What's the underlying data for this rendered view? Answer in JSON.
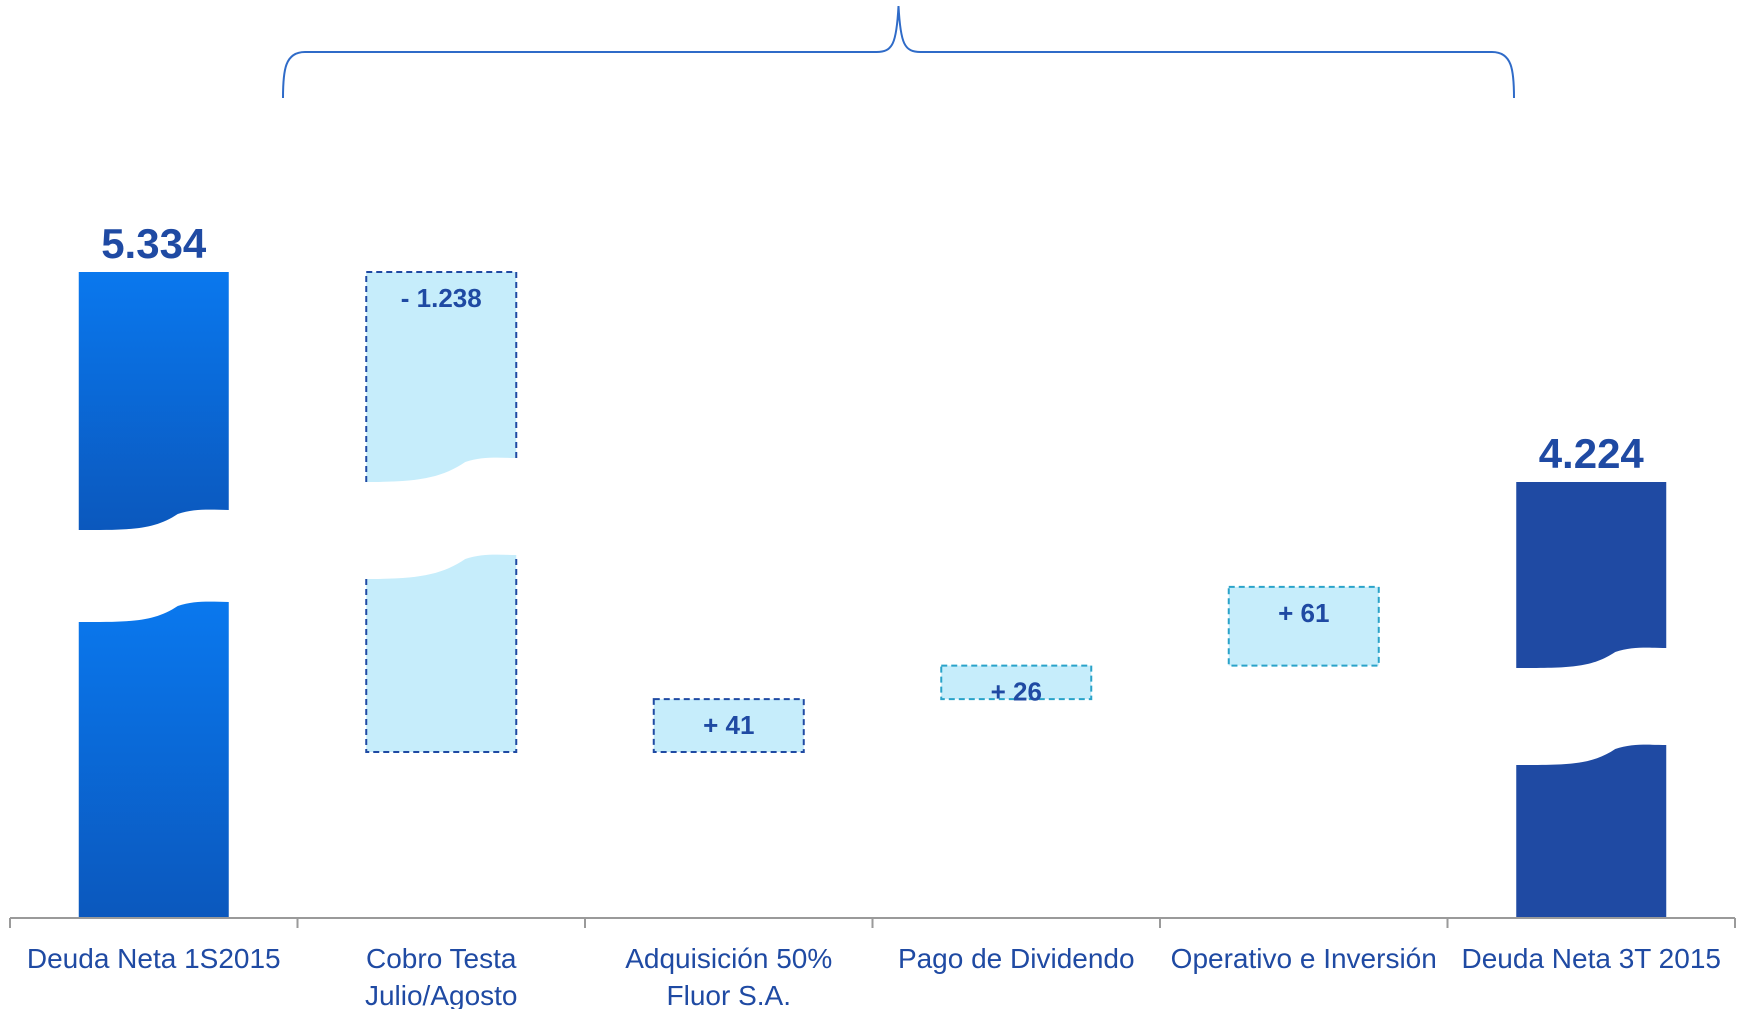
{
  "chart_data": {
    "type": "bar",
    "subtype": "waterfall",
    "categories": [
      "Deuda Neta 1S2015",
      "Cobro Testa Julio/Agosto",
      "Adquisición 50% Fluor S.A.",
      "Pago de Dividendo",
      "Operativo e Inversión",
      "Deuda Neta 3T 2015"
    ],
    "category_lines": [
      [
        "Deuda Neta 1S2015"
      ],
      [
        "Cobro Testa",
        "Julio/Agosto"
      ],
      [
        "Adquisición 50%",
        "Fluor S.A."
      ],
      [
        "Pago de Dividendo"
      ],
      [
        "Operativo e Inversión"
      ],
      [
        "Deuda Neta 3T 2015"
      ]
    ],
    "values": [
      5334,
      -1238,
      41,
      26,
      61,
      4224
    ],
    "labels": [
      "5.334",
      "- 1.238",
      "+ 41",
      "+ 26",
      "+ 61",
      "4.224"
    ],
    "kinds": [
      "total",
      "delta",
      "delta",
      "delta",
      "delta",
      "total"
    ],
    "axis_break": true,
    "brace_over_deltas": true,
    "colors": {
      "start_total": "#0b6fd9",
      "end_total": "#1f4aa3",
      "delta_fill": "#c6edfb",
      "delta_border_dark": "#1f4aa3",
      "delta_border_light": "#2aa3c9",
      "label": "#1f4aa3",
      "axis": "#9a9a9a",
      "brace": "#2f6bc8"
    }
  }
}
